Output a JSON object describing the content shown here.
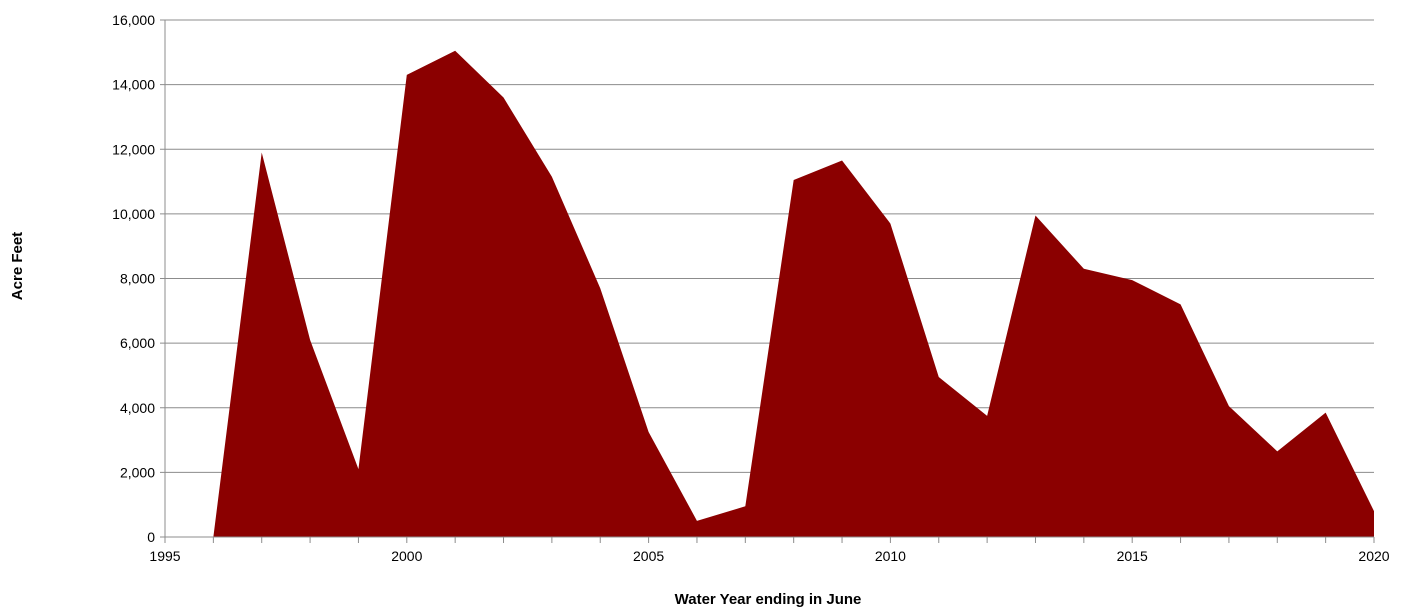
{
  "chart_data": {
    "type": "area",
    "title": "",
    "xlabel": "Water Year ending in June",
    "ylabel": "Acre Feet",
    "xlim": [
      1995,
      2020
    ],
    "ylim": [
      0,
      16000
    ],
    "x_ticks": [
      1995,
      2000,
      2005,
      2010,
      2015,
      2020
    ],
    "x_tick_labels": [
      "1995",
      "2000",
      "2005",
      "2010",
      "2015",
      "2020"
    ],
    "y_ticks": [
      0,
      2000,
      4000,
      6000,
      8000,
      10000,
      12000,
      14000,
      16000
    ],
    "y_tick_labels": [
      "0",
      "2,000",
      "4,000",
      "6,000",
      "8,000",
      "10,000",
      "12,000",
      "14,000",
      "16,000"
    ],
    "grid": true,
    "legend": "none",
    "color": "#8b0000",
    "series": [
      {
        "x": [
          1996,
          1997,
          1998,
          1999,
          2000,
          2001,
          2002,
          2003,
          2004,
          2005,
          2006,
          2007,
          2008,
          2009,
          2010,
          2011,
          2012,
          2013,
          2014,
          2015,
          2016,
          2017,
          2018,
          2019,
          2020
        ],
        "values": [
          0,
          11900,
          6100,
          2100,
          14300,
          15050,
          13600,
          11150,
          7700,
          3250,
          500,
          950,
          11050,
          11650,
          9700,
          4950,
          3750,
          9950,
          8300,
          7950,
          7200,
          4050,
          2650,
          3850,
          800
        ]
      }
    ]
  }
}
